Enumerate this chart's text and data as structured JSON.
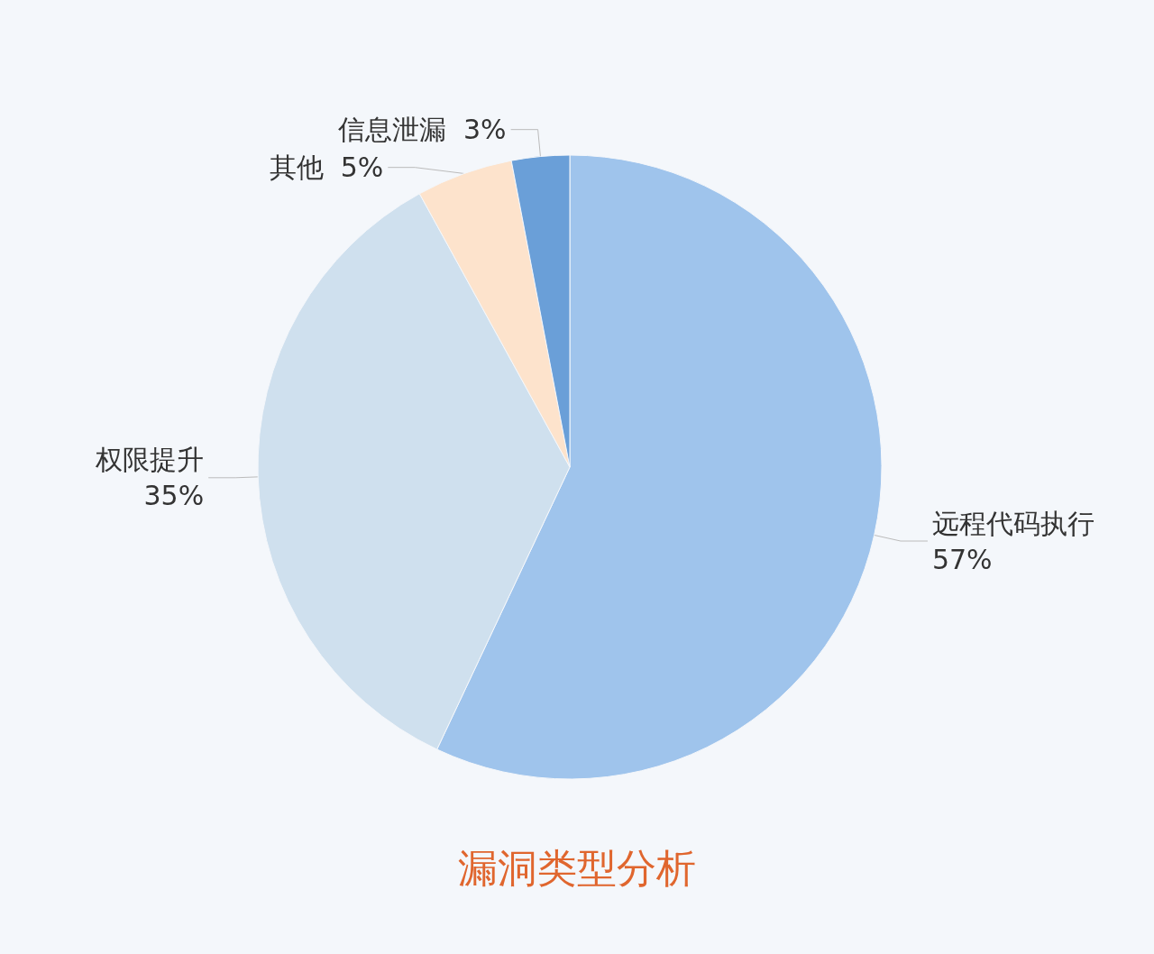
{
  "chart_data": {
    "type": "pie",
    "title": "漏洞类型分析",
    "categories": [
      "远程代码执行",
      "权限提升",
      "其他",
      "信息泄漏"
    ],
    "values": [
      57,
      35,
      5,
      3
    ],
    "value_labels": [
      "57%",
      "35%",
      "5%",
      "3%"
    ],
    "colors": [
      "#9fc4ec",
      "#cfe0ee",
      "#fde3cc",
      "#6a9fd8"
    ],
    "legend": false
  }
}
